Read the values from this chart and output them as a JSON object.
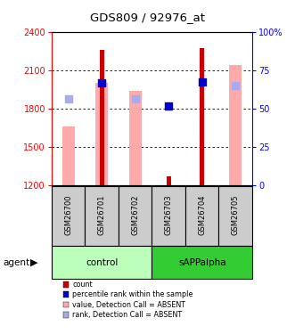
{
  "title": "GDS809 / 92976_at",
  "samples": [
    "GSM26700",
    "GSM26701",
    "GSM26702",
    "GSM26703",
    "GSM26704",
    "GSM26705"
  ],
  "ylim": [
    1200,
    2400
  ],
  "y_ticks": [
    1200,
    1500,
    1800,
    2100,
    2400
  ],
  "right_yticks": [
    0,
    25,
    50,
    75,
    100
  ],
  "right_yticklabels": [
    "0",
    "25",
    "50",
    "75",
    "100%"
  ],
  "bar_bottom": 1200,
  "red_bars": [
    null,
    2260,
    null,
    1270,
    2275,
    null
  ],
  "pink_bars": [
    1660,
    2000,
    1940,
    null,
    null,
    2140
  ],
  "blue_squares": [
    null,
    2000,
    null,
    1820,
    2010,
    null
  ],
  "lavender_squares": [
    1875,
    null,
    1875,
    null,
    null,
    1980
  ],
  "red_bar_color": "#cc0000",
  "pink_bar_color": "#ffaaaa",
  "blue_sq_color": "#0000cc",
  "lavender_sq_color": "#aaaaee",
  "control_bg": "#bbffbb",
  "sAPPalpha_bg": "#33cc33",
  "sample_box_bg": "#cccccc",
  "legend_items": [
    {
      "label": "count",
      "color": "#cc0000"
    },
    {
      "label": "percentile rank within the sample",
      "color": "#0000cc"
    },
    {
      "label": "value, Detection Call = ABSENT",
      "color": "#ffaaaa"
    },
    {
      "label": "rank, Detection Call = ABSENT",
      "color": "#aaaaee"
    }
  ]
}
